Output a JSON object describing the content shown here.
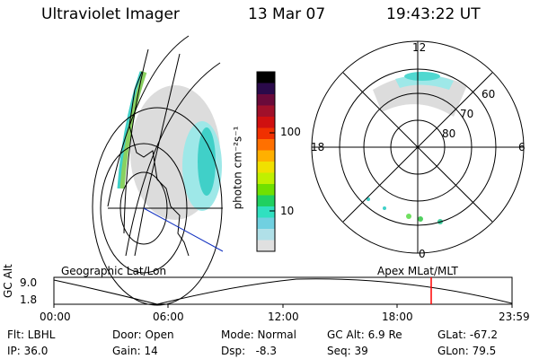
{
  "header": {
    "instrument": "Ultraviolet Imager",
    "date": "13 Mar 07",
    "time": "19:43:22 UT"
  },
  "colorbar": {
    "unit_label": "photon cm⁻²s⁻¹",
    "tick_labels": [
      "100",
      "10"
    ],
    "colors": [
      "#000000",
      "#2a0a4a",
      "#6a0a3a",
      "#a0102a",
      "#d01010",
      "#f03000",
      "#ff7000",
      "#ffb000",
      "#f0e000",
      "#c0f000",
      "#70e000",
      "#20d060",
      "#30e0c0",
      "#70d0e0",
      "#b0e0e8",
      "#e0e0e0"
    ]
  },
  "polar_plot": {
    "mlt_labels": [
      "12",
      "18",
      "6",
      "0"
    ],
    "lat_labels": [
      "60",
      "70",
      "80"
    ]
  },
  "timeline": {
    "left_label": "Geographic Lat/Lon",
    "right_label": "Apex MLat/MLT",
    "y_axis_label": "GC Alt",
    "y_ticks": [
      "9.0",
      "1.8"
    ],
    "x_ticks": [
      "00:00",
      "06:00",
      "12:00",
      "18:00",
      "23:59"
    ],
    "marker_color": "#ff0000"
  },
  "status": {
    "row1": [
      "Flt: LBHL",
      "Door: Open",
      "Mode: Normal",
      "GC Alt: 6.9 Re",
      "GLat: -67.2"
    ],
    "row2": [
      "IP: 36.0",
      "Gain: 14",
      "Dsp:   -8.3",
      "Seq: 39",
      "GLon: 79.5"
    ]
  }
}
